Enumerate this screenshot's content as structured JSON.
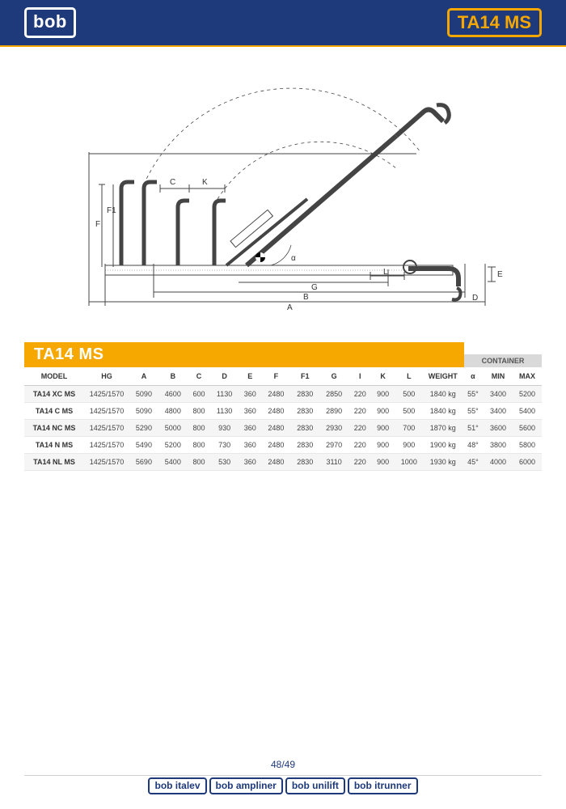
{
  "header": {
    "logo_text": "bob",
    "badge_text": "TA14 MS"
  },
  "diagram": {
    "labels": {
      "C": "C",
      "K": "K",
      "F": "F",
      "F1": "F1",
      "alpha": "α",
      "L": "L",
      "G": "G",
      "B": "B",
      "A": "A",
      "D": "D",
      "E": "E"
    },
    "stroke_color": "#444",
    "dash_color": "#666"
  },
  "table": {
    "title": "TA14 MS",
    "container_label": "CONTAINER",
    "columns": [
      "MODEL",
      "HG",
      "A",
      "B",
      "C",
      "D",
      "E",
      "F",
      "F1",
      "G",
      "I",
      "K",
      "L",
      "WEIGHT",
      "α",
      "MIN",
      "MAX"
    ],
    "rows": [
      [
        "TA14 XC MS",
        "1425/1570",
        "5090",
        "4600",
        "600",
        "1130",
        "360",
        "2480",
        "2830",
        "2850",
        "220",
        "900",
        "500",
        "1840 kg",
        "55°",
        "3400",
        "5200"
      ],
      [
        "TA14 C MS",
        "1425/1570",
        "5090",
        "4800",
        "800",
        "1130",
        "360",
        "2480",
        "2830",
        "2890",
        "220",
        "900",
        "500",
        "1840 kg",
        "55°",
        "3400",
        "5400"
      ],
      [
        "TA14 NC MS",
        "1425/1570",
        "5290",
        "5000",
        "800",
        "930",
        "360",
        "2480",
        "2830",
        "2930",
        "220",
        "900",
        "700",
        "1870 kg",
        "51°",
        "3600",
        "5600"
      ],
      [
        "TA14 N MS",
        "1425/1570",
        "5490",
        "5200",
        "800",
        "730",
        "360",
        "2480",
        "2830",
        "2970",
        "220",
        "900",
        "900",
        "1900 kg",
        "48°",
        "3800",
        "5800"
      ],
      [
        "TA14 NL MS",
        "1425/1570",
        "5690",
        "5400",
        "800",
        "530",
        "360",
        "2480",
        "2830",
        "3110",
        "220",
        "900",
        "1000",
        "1930 kg",
        "45°",
        "4000",
        "6000"
      ]
    ],
    "header_bg": "#ffffff",
    "row_alt_bg": "#f5f5f5",
    "row_bg": "#ffffff",
    "font_size": 9
  },
  "footer": {
    "page_text": "48/49",
    "brands": [
      "bob italev",
      "bob ampliner",
      "bob unilift",
      "bob itrunner"
    ]
  },
  "colors": {
    "brand_blue": "#1e3a7b",
    "brand_orange": "#f6a800",
    "gray": "#d9d9d9"
  }
}
